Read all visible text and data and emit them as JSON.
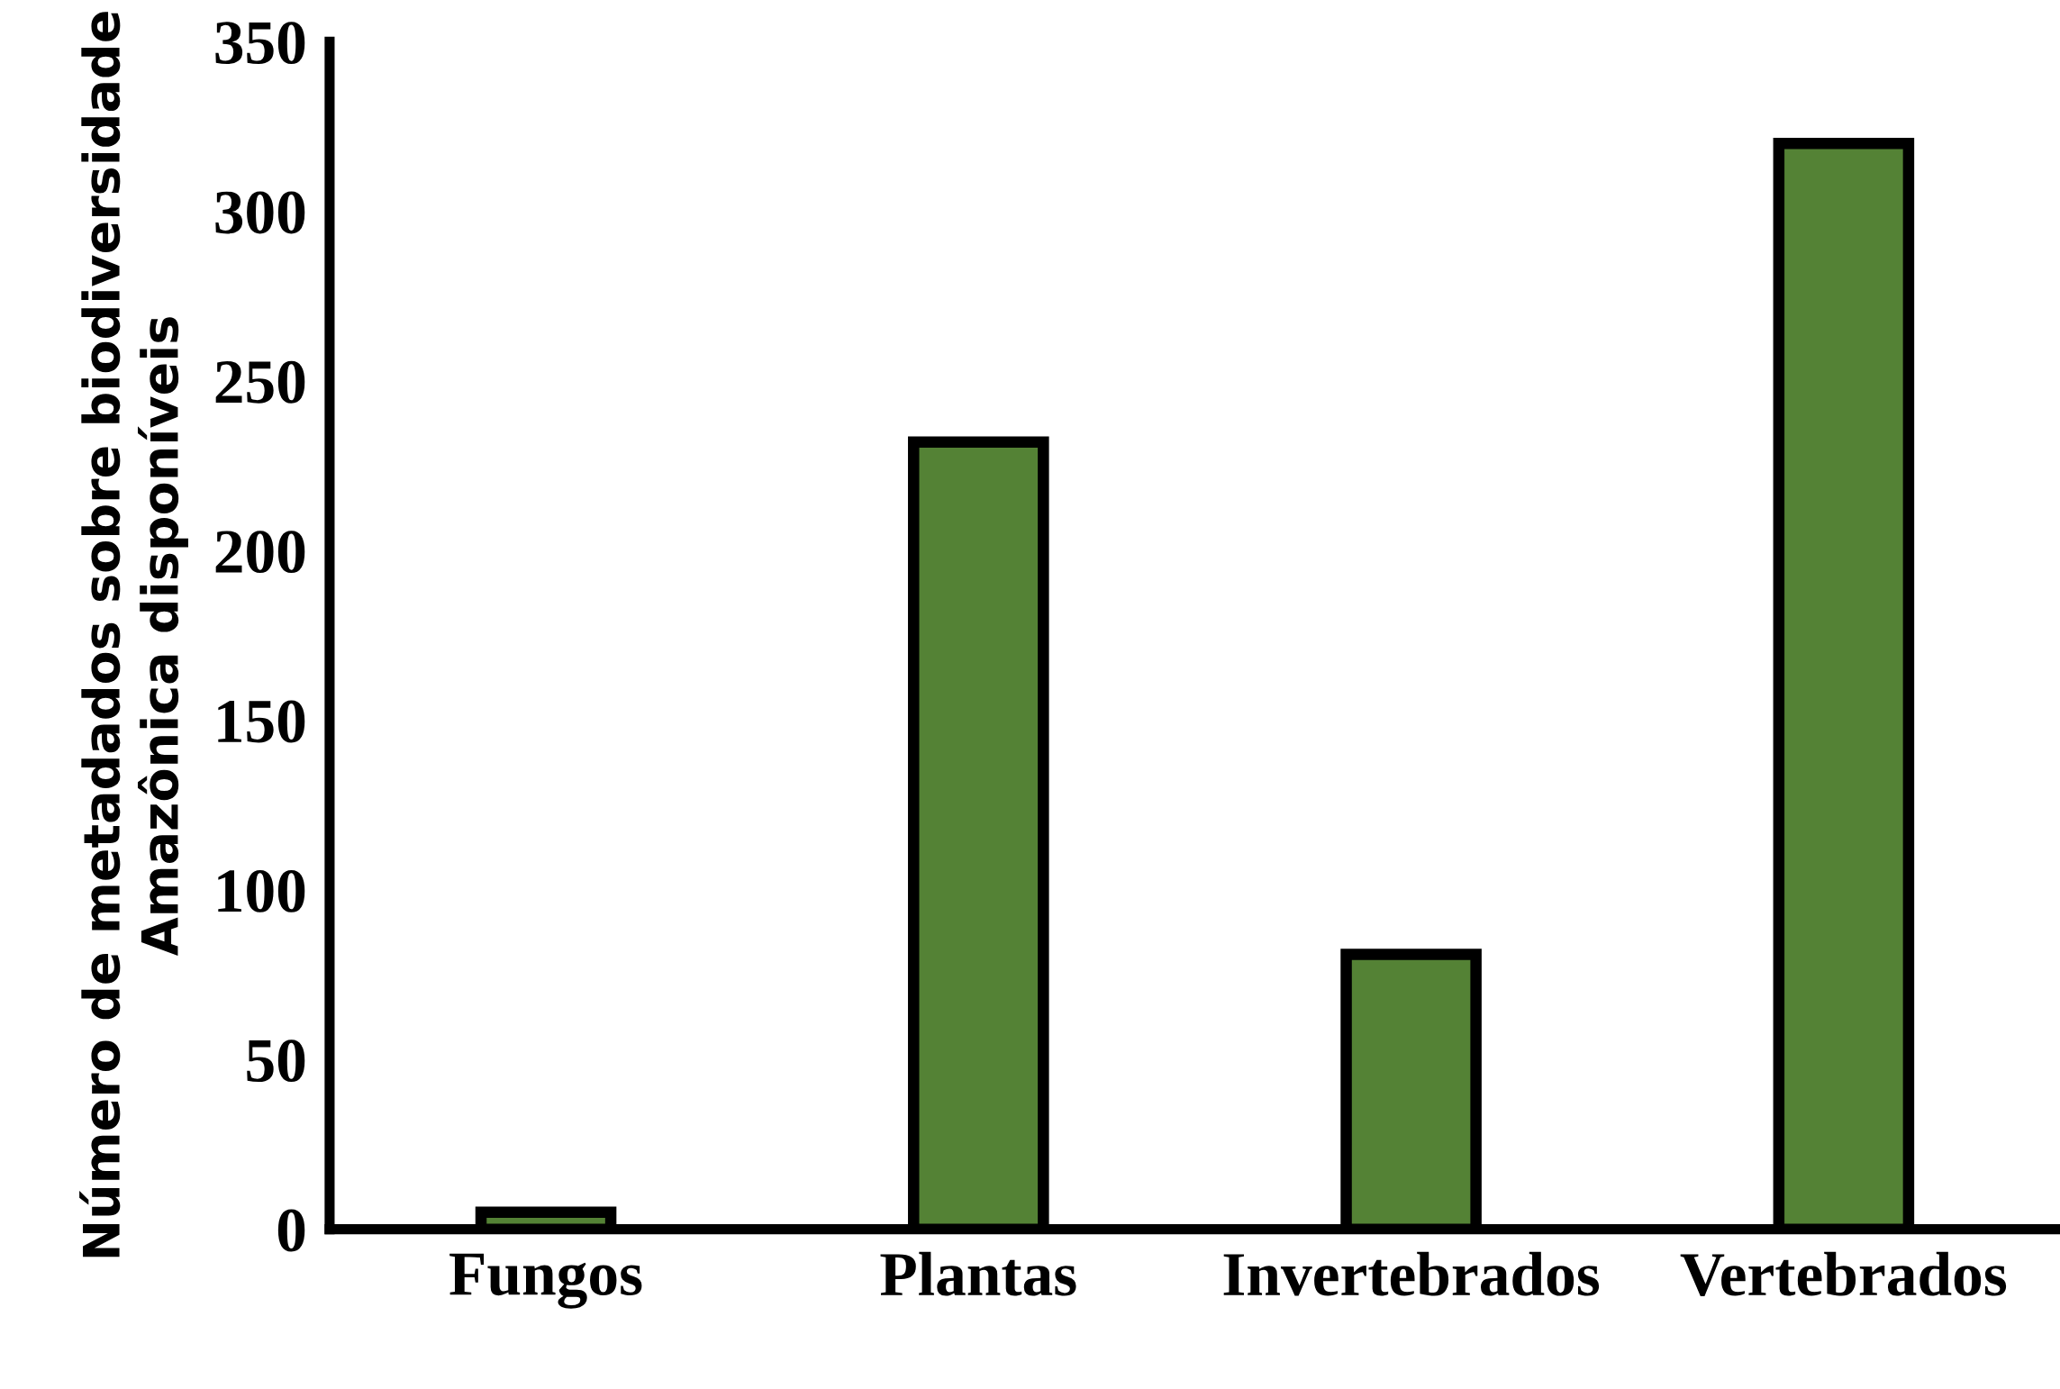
{
  "chart_data": {
    "type": "bar",
    "ylabel": "Número de metadados sobre biodiversidade\nAmazônica disponíveis",
    "categories": [
      "Fungos",
      "Plantas",
      "Invertebrados",
      "Vertebrados"
    ],
    "values": [
      5,
      232,
      81,
      320
    ],
    "color": "#548235",
    "ylim": [
      0,
      350
    ],
    "yticks": [
      0,
      50,
      100,
      150,
      200,
      250,
      300,
      350
    ],
    "grid": false
  }
}
